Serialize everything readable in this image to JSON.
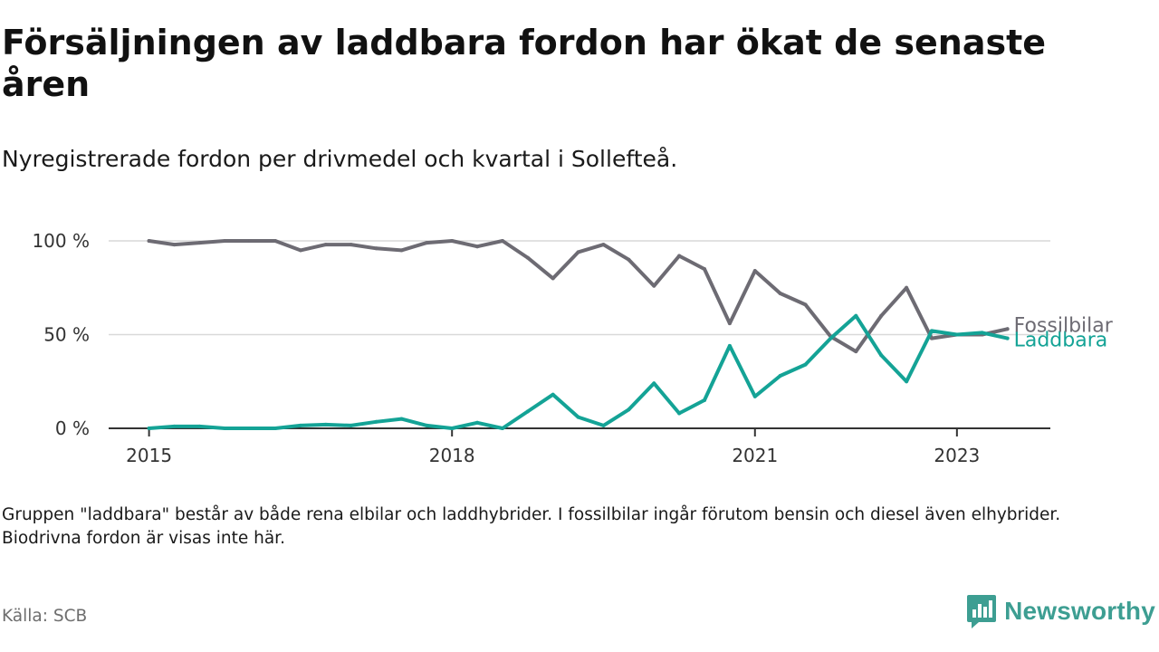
{
  "title": "Försäljningen av laddbara fordon har ökat de senaste åren",
  "subtitle": "Nyregistrerade fordon per drivmedel och kvartal i Sollefteå.",
  "note": "Gruppen \"laddbara\" består av både rena elbilar och laddhybrider. I fossilbilar ingår förutom bensin och diesel även elhybrider. Biodrivna fordon är visas inte här.",
  "source": "Källa: SCB",
  "brand": "Newsworthy",
  "colors": {
    "fossil": "#6d6b73",
    "laddbara": "#14a396",
    "grid": "#d9d9d9",
    "axis": "#333333",
    "brand": "#3d9e92"
  },
  "chart_data": {
    "type": "line",
    "title": "Försäljningen av laddbara fordon har ökat de senaste åren",
    "xlabel": "",
    "ylabel": "",
    "x_start": "2015 Q1",
    "x_ticks": [
      {
        "index": 0,
        "label": "2015"
      },
      {
        "index": 12,
        "label": "2018"
      },
      {
        "index": 24,
        "label": "2021"
      },
      {
        "index": 32,
        "label": "2023"
      }
    ],
    "y_ticks": [
      {
        "value": 0,
        "label": "0 %"
      },
      {
        "value": 50,
        "label": "50 %"
      },
      {
        "value": 100,
        "label": "100 %"
      }
    ],
    "ylim": [
      0,
      100
    ],
    "xlim": [
      -1.6,
      35.7
    ],
    "grid": true,
    "series": [
      {
        "name": "Fossilbilar",
        "color": "#6d6b73",
        "values": [
          100,
          98,
          99,
          100,
          100,
          100,
          95,
          98,
          98,
          96,
          95,
          99,
          100,
          97,
          100,
          91,
          80,
          94,
          98,
          90,
          76,
          92,
          85,
          56,
          84,
          72,
          66,
          49,
          41,
          60,
          75,
          48,
          50,
          50,
          53
        ]
      },
      {
        "name": "Laddbara",
        "color": "#14a396",
        "values": [
          0,
          1,
          1,
          0,
          0,
          0,
          1.5,
          2,
          1.5,
          3.5,
          5,
          1.5,
          0,
          3,
          0,
          9,
          18,
          6,
          1.5,
          10,
          24,
          8,
          15,
          44,
          17,
          28,
          34,
          48,
          60,
          39,
          25,
          52,
          50,
          51,
          48
        ]
      }
    ]
  }
}
